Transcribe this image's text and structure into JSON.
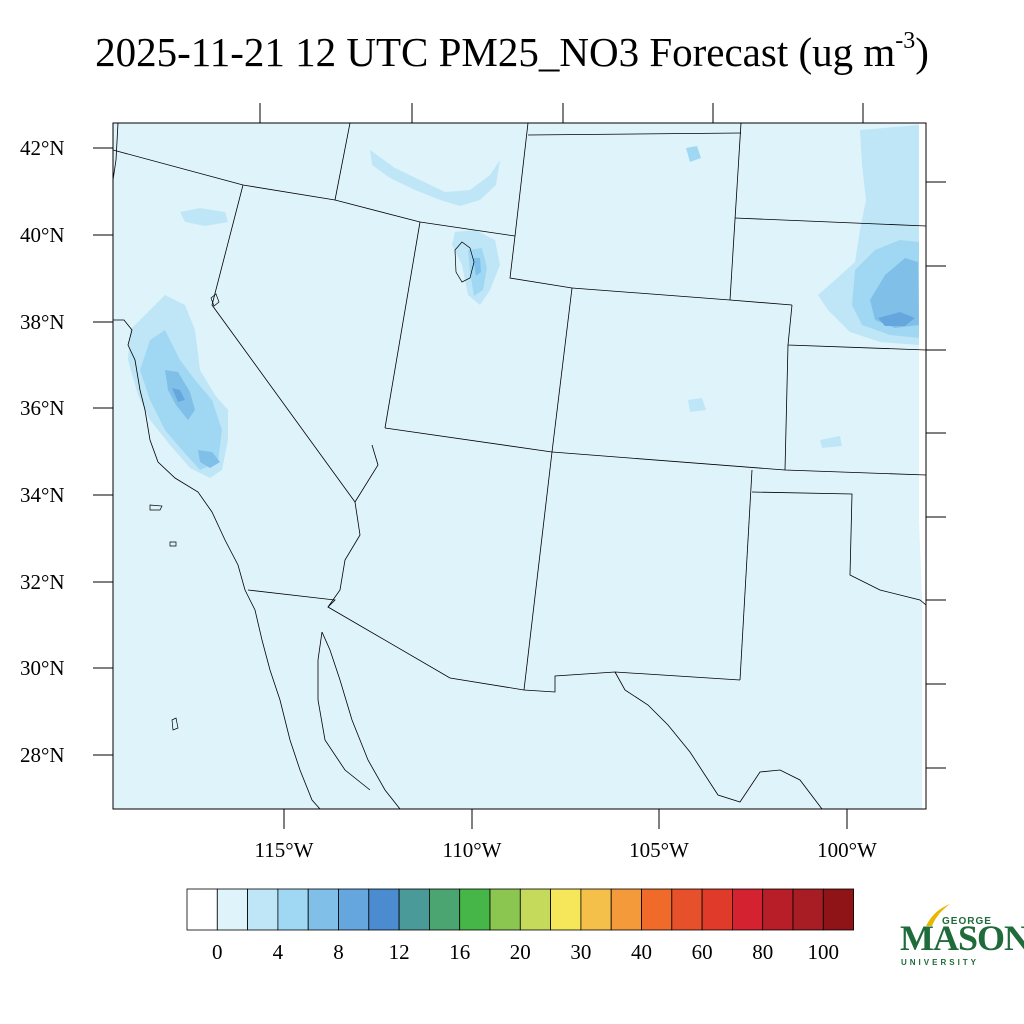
{
  "title": {
    "main": "2025-11-21 12 UTC PM25_NO3 Forecast (ug m",
    "superscript": "-3",
    "close": ")"
  },
  "map": {
    "lat_labels": [
      "42°N",
      "40°N",
      "38°N",
      "36°N",
      "34°N",
      "32°N",
      "30°N",
      "28°N"
    ],
    "lon_labels": [
      "115°W",
      "110°W",
      "105°W",
      "100°W"
    ],
    "background_fill": "#dff3fb",
    "edge_fill": "#ffffff"
  },
  "colorbar": {
    "labels": [
      "0",
      "4",
      "8",
      "12",
      "16",
      "20",
      "30",
      "40",
      "60",
      "80",
      "100"
    ],
    "colors": [
      "#ffffff",
      "#dff3fb",
      "#bfe6f7",
      "#a0d8f3",
      "#80c0e8",
      "#66a6de",
      "#4a8ccf",
      "#4a9a9a",
      "#4aa570",
      "#46b649",
      "#8ac650",
      "#c5d95a",
      "#f5e65a",
      "#f5c04a",
      "#f59a3a",
      "#f06a2a",
      "#e6502a",
      "#e03a2a",
      "#d42230",
      "#b81e28",
      "#a81c24",
      "#8e1418"
    ]
  },
  "logo": {
    "top_text": "GEORGE",
    "main_text": "MASON",
    "bottom_text": "UNIVERSITY",
    "color": "#1f6b3a",
    "accent_color": "#e8b800"
  }
}
